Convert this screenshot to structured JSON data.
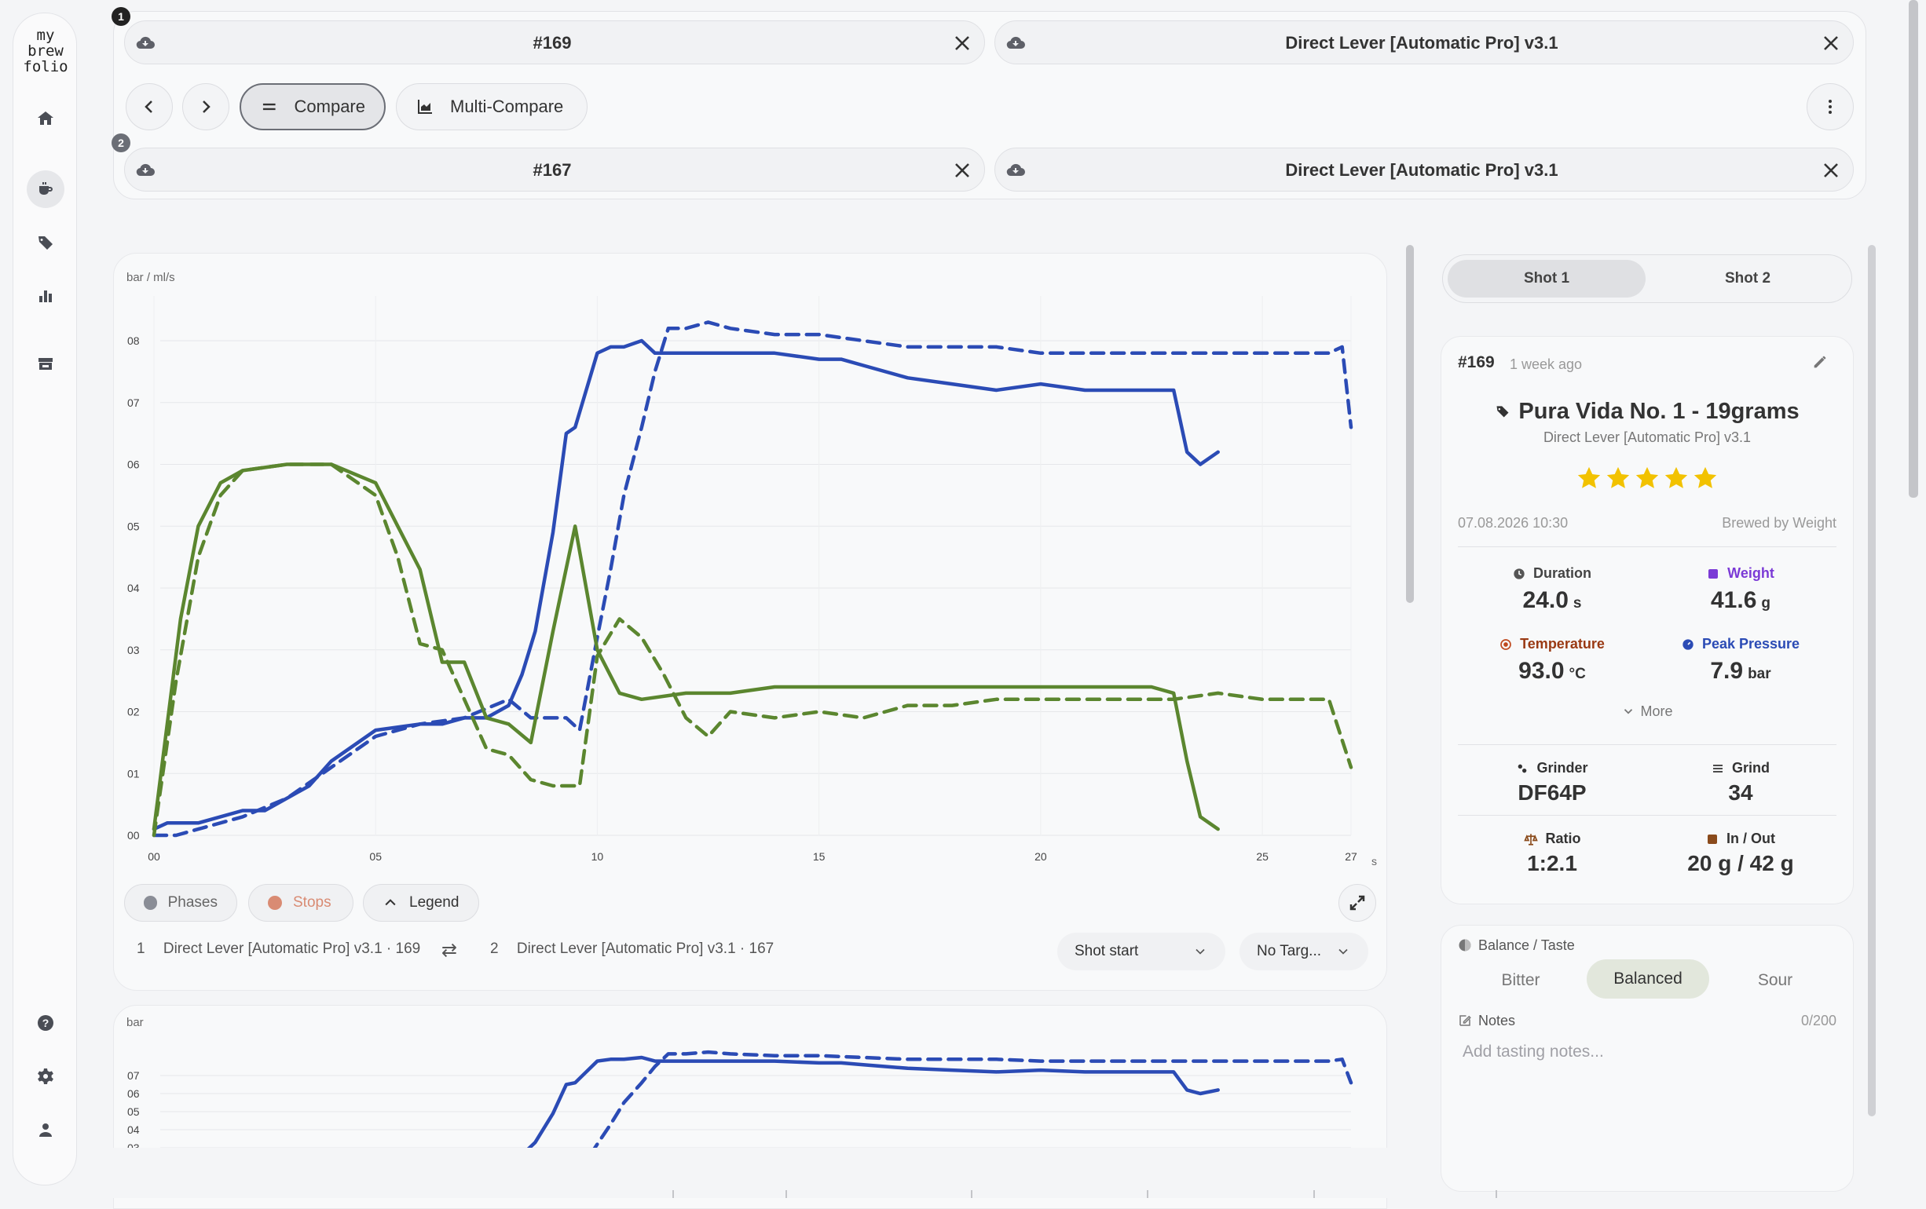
{
  "app": {
    "logo_lines": [
      "my",
      "brew",
      "folio"
    ]
  },
  "sidebar": {
    "items": [
      {
        "name": "home-icon",
        "active": false
      },
      {
        "name": "coffee-cup-icon",
        "active": true
      },
      {
        "name": "tag-icon",
        "active": false
      },
      {
        "name": "bar-chart-icon",
        "active": false
      },
      {
        "name": "store-icon",
        "active": false
      }
    ],
    "bottom": [
      "help-icon",
      "settings-icon",
      "user-icon"
    ]
  },
  "compare": {
    "slot1": {
      "badge": "1",
      "shot": "#169",
      "profile": "Direct Lever [Automatic Pro] v3.1"
    },
    "slot2": {
      "badge": "2",
      "shot": "#167",
      "profile": "Direct Lever [Automatic Pro] v3.1"
    },
    "modes": {
      "compare": "Compare",
      "multi": "Multi-Compare",
      "active": "compare"
    }
  },
  "chart_data": [
    {
      "type": "line",
      "ylabel": "bar / ml/s",
      "xlabel": "s",
      "xlim": [
        0,
        27
      ],
      "ylim": [
        0,
        8.5
      ],
      "x_ticks": [
        "00",
        "05",
        "10",
        "15",
        "20",
        "25",
        "27"
      ],
      "y_ticks": [
        "00",
        "01",
        "02",
        "03",
        "04",
        "05",
        "06",
        "07",
        "08"
      ],
      "grid": true,
      "series": [
        {
          "shot": "169",
          "metric": "pressure",
          "color": "#2b4bb5",
          "dash": false,
          "x": [
            0,
            0.3,
            0.6,
            1,
            2,
            2.5,
            3,
            3.5,
            4,
            5,
            6,
            6.5,
            7,
            7.5,
            8,
            8.3,
            8.6,
            9,
            9.3,
            9.5,
            10,
            10.3,
            10.6,
            11,
            11.3,
            12,
            13,
            14,
            15,
            15.5,
            16,
            17,
            18,
            19,
            20,
            21,
            22,
            22.5,
            23,
            23.3,
            23.6,
            24
          ],
          "y": [
            0.1,
            0.2,
            0.2,
            0.2,
            0.4,
            0.4,
            0.6,
            0.8,
            1.2,
            1.7,
            1.8,
            1.8,
            1.9,
            1.9,
            2.1,
            2.6,
            3.3,
            4.9,
            6.5,
            6.6,
            7.8,
            7.9,
            7.9,
            8.0,
            7.8,
            7.8,
            7.8,
            7.8,
            7.7,
            7.7,
            7.6,
            7.4,
            7.3,
            7.2,
            7.3,
            7.2,
            7.2,
            7.2,
            7.2,
            6.2,
            6.0,
            6.2
          ]
        },
        {
          "shot": "167",
          "metric": "pressure",
          "color": "#2b4bb5",
          "dash": true,
          "x": [
            0,
            0.5,
            1,
            2,
            3,
            4,
            5,
            6,
            7,
            8,
            8.5,
            9,
            9.3,
            9.6,
            10,
            10.3,
            10.6,
            11,
            11.3,
            11.6,
            12,
            12.5,
            13,
            14,
            15,
            16,
            17,
            18,
            19,
            20,
            21,
            22,
            23,
            24,
            25,
            26,
            26.5,
            26.8,
            27
          ],
          "y": [
            0,
            0,
            0.1,
            0.3,
            0.6,
            1.1,
            1.6,
            1.8,
            1.9,
            2.2,
            1.9,
            1.9,
            1.9,
            1.7,
            3.2,
            4.3,
            5.5,
            6.6,
            7.5,
            8.2,
            8.2,
            8.3,
            8.2,
            8.1,
            8.1,
            8.0,
            7.9,
            7.9,
            7.9,
            7.8,
            7.8,
            7.8,
            7.8,
            7.8,
            7.8,
            7.8,
            7.8,
            7.9,
            6.6
          ]
        },
        {
          "shot": "169",
          "metric": "flow",
          "color": "#5b862f",
          "dash": false,
          "x": [
            0,
            0.3,
            0.6,
            1,
            1.5,
            2,
            3,
            4,
            5,
            5.5,
            6,
            6.5,
            7,
            7.5,
            8,
            8.5,
            9,
            9.5,
            10,
            10.5,
            11,
            12,
            13,
            14,
            15,
            16,
            17,
            18,
            19,
            20,
            21,
            22,
            22.5,
            23,
            23.3,
            23.6,
            24
          ],
          "y": [
            0.1,
            1.8,
            3.5,
            5.0,
            5.7,
            5.9,
            6.0,
            6.0,
            5.7,
            5.0,
            4.3,
            2.8,
            2.8,
            1.9,
            1.8,
            1.5,
            3.3,
            5.0,
            3.0,
            2.3,
            2.2,
            2.3,
            2.3,
            2.4,
            2.4,
            2.4,
            2.4,
            2.4,
            2.4,
            2.4,
            2.4,
            2.4,
            2.4,
            2.3,
            1.2,
            0.3,
            0.1
          ]
        },
        {
          "shot": "167",
          "metric": "flow",
          "color": "#5b862f",
          "dash": true,
          "x": [
            0,
            0.5,
            1,
            1.5,
            2,
            3,
            4,
            5,
            5.5,
            6,
            6.5,
            7,
            7.5,
            8,
            8.5,
            9,
            9.3,
            9.6,
            10,
            10.5,
            11,
            11.5,
            12,
            12.5,
            13,
            14,
            15,
            16,
            17,
            18,
            19,
            20,
            21,
            22,
            23,
            24,
            25,
            26,
            26.5,
            27
          ],
          "y": [
            0,
            2.5,
            4.5,
            5.5,
            5.9,
            6.0,
            6.0,
            5.5,
            4.5,
            3.1,
            3.0,
            2.2,
            1.4,
            1.3,
            0.9,
            0.8,
            0.8,
            0.8,
            2.9,
            3.5,
            3.2,
            2.6,
            1.9,
            1.6,
            2.0,
            1.9,
            2.0,
            1.9,
            2.1,
            2.1,
            2.2,
            2.2,
            2.2,
            2.2,
            2.2,
            2.3,
            2.2,
            2.2,
            2.2,
            1.1
          ]
        }
      ]
    },
    {
      "type": "line",
      "ylabel": "bar",
      "xlim": [
        0,
        27
      ],
      "y_ticks": [
        "07",
        "06",
        "05",
        "04",
        "03"
      ],
      "series": [
        {
          "shot": "169",
          "metric": "pressure",
          "color": "#2b4bb5",
          "dash": false
        },
        {
          "shot": "167",
          "metric": "pressure",
          "color": "#2b4bb5",
          "dash": true
        }
      ]
    }
  ],
  "chart_controls": {
    "chips": [
      {
        "label": "Phases",
        "dot": "#8a8d96",
        "text_color": "#666"
      },
      {
        "label": "Stops",
        "dot": "#d98b73",
        "text_color": "#d98b73"
      },
      {
        "label": "Legend",
        "icon": "chevron-up-icon",
        "text_color": "#333"
      }
    ],
    "legend1": {
      "num": "1",
      "text": "Direct Lever [Automatic Pro] v3.1 · 169"
    },
    "legend2": {
      "num": "2",
      "text": "Direct Lever [Automatic Pro] v3.1 · 167"
    },
    "align_select": "Shot start",
    "target_select": "No Targ..."
  },
  "detail": {
    "tabs": [
      "Shot 1",
      "Shot 2"
    ],
    "active_tab": "Shot 1",
    "shot_id": "#169",
    "ago": "1 week ago",
    "bean": "Pura Vida No. 1 - 19grams",
    "profile": "Direct Lever [Automatic Pro] v3.1",
    "rating": 5,
    "star_color": "#f2c200",
    "date": "07.08.2026 10:30",
    "brew_mode": "Brewed by Weight",
    "duration": {
      "label": "Duration",
      "value": "24.0",
      "unit": "s",
      "color": "#444"
    },
    "weight": {
      "label": "Weight",
      "value": "41.6",
      "unit": "g",
      "color": "#7b3ad6"
    },
    "temperature": {
      "label": "Temperature",
      "value": "93.0",
      "unit": "°C",
      "color": "#c04a1f"
    },
    "peak_pressure": {
      "label": "Peak Pressure",
      "value": "7.9",
      "unit": "bar",
      "color": "#2b4bb5"
    },
    "more": "More",
    "grinder": {
      "label": "Grinder",
      "value": "DF64P"
    },
    "grind": {
      "label": "Grind",
      "value": "34"
    },
    "ratio": {
      "label": "Ratio",
      "value": "1:2.1",
      "color": "#8a4b1c"
    },
    "in_out": {
      "label": "In / Out",
      "value": "20 g / 42 g",
      "color": "#8a4b1c"
    }
  },
  "taste": {
    "title": "Balance / Taste",
    "options": [
      "Bitter",
      "Balanced",
      "Sour"
    ],
    "selected": "Balanced",
    "notes_label": "Notes",
    "notes_count": "0/200",
    "notes_placeholder": "Add tasting notes..."
  }
}
